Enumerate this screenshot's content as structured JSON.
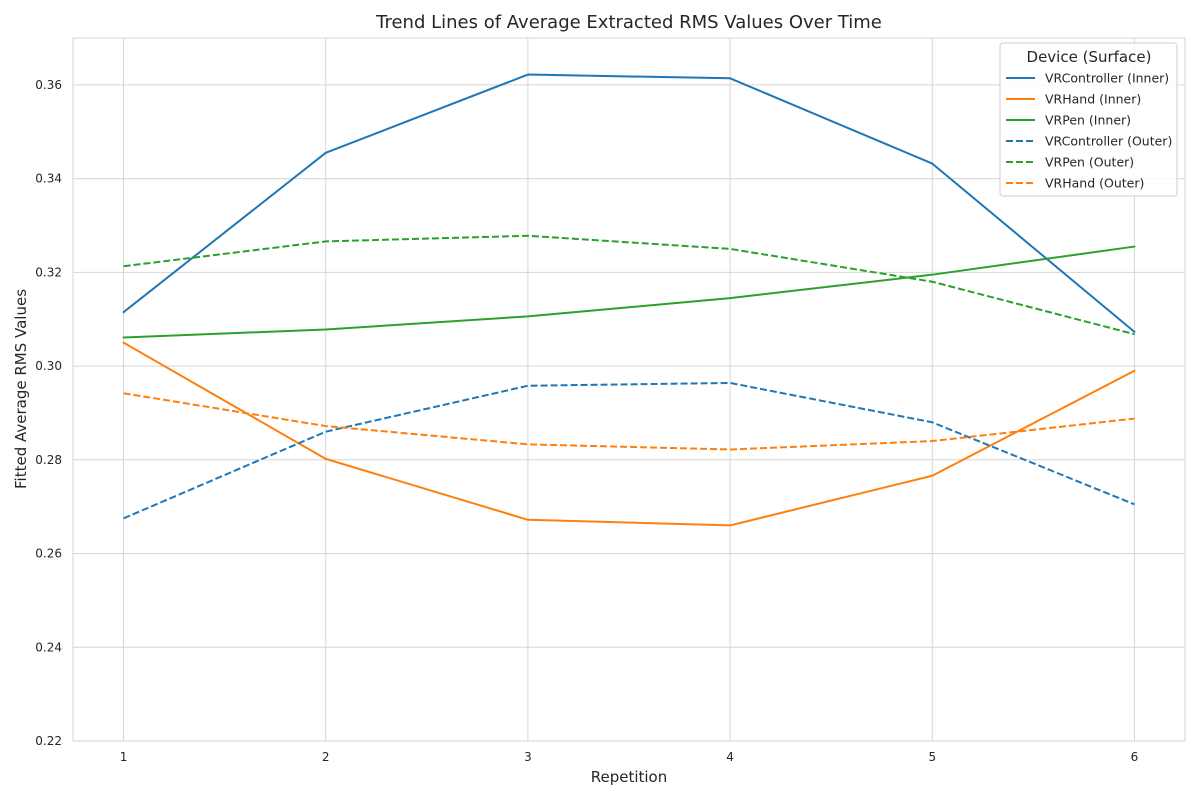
{
  "chart_data": {
    "type": "line",
    "title": "Trend Lines of Average Extracted RMS Values Over Time",
    "xlabel": "Repetition",
    "ylabel": "Fitted Average RMS Values",
    "x": [
      1,
      2,
      3,
      4,
      5,
      6
    ],
    "xticks": [
      "1",
      "2",
      "3",
      "4",
      "5",
      "6"
    ],
    "xlim": [
      0.75,
      6.25
    ],
    "ylim": [
      0.22,
      0.37
    ],
    "yticks": [
      "0.22",
      "0.24",
      "0.26",
      "0.28",
      "0.30",
      "0.32",
      "0.34",
      "0.36"
    ],
    "grid": true,
    "legend": {
      "title": "Device (Surface)",
      "placement": "top-right"
    },
    "series": [
      {
        "name": "VRController (Inner)",
        "color": "#1f77b4",
        "style": "solid",
        "values": [
          0.3115,
          0.3455,
          0.3622,
          0.3614,
          0.3432,
          0.3073
        ]
      },
      {
        "name": "VRHand (Inner)",
        "color": "#ff7f0e",
        "style": "solid",
        "values": [
          0.305,
          0.2802,
          0.2672,
          0.266,
          0.2766,
          0.299
        ]
      },
      {
        "name": "VRPen (Inner)",
        "color": "#2ca02c",
        "style": "solid",
        "values": [
          0.3061,
          0.3078,
          0.3106,
          0.3145,
          0.3195,
          0.3255
        ]
      },
      {
        "name": "VRController (Outer)",
        "color": "#1f77b4",
        "style": "dashed",
        "values": [
          0.2675,
          0.286,
          0.2958,
          0.2964,
          0.288,
          0.2705
        ]
      },
      {
        "name": "VRPen (Outer)",
        "color": "#2ca02c",
        "style": "dashed",
        "values": [
          0.3213,
          0.3266,
          0.3278,
          0.325,
          0.318,
          0.3068
        ]
      },
      {
        "name": "VRHand (Outer)",
        "color": "#ff7f0e",
        "style": "dashed",
        "values": [
          0.2942,
          0.2872,
          0.2833,
          0.2822,
          0.284,
          0.2888
        ]
      }
    ]
  }
}
